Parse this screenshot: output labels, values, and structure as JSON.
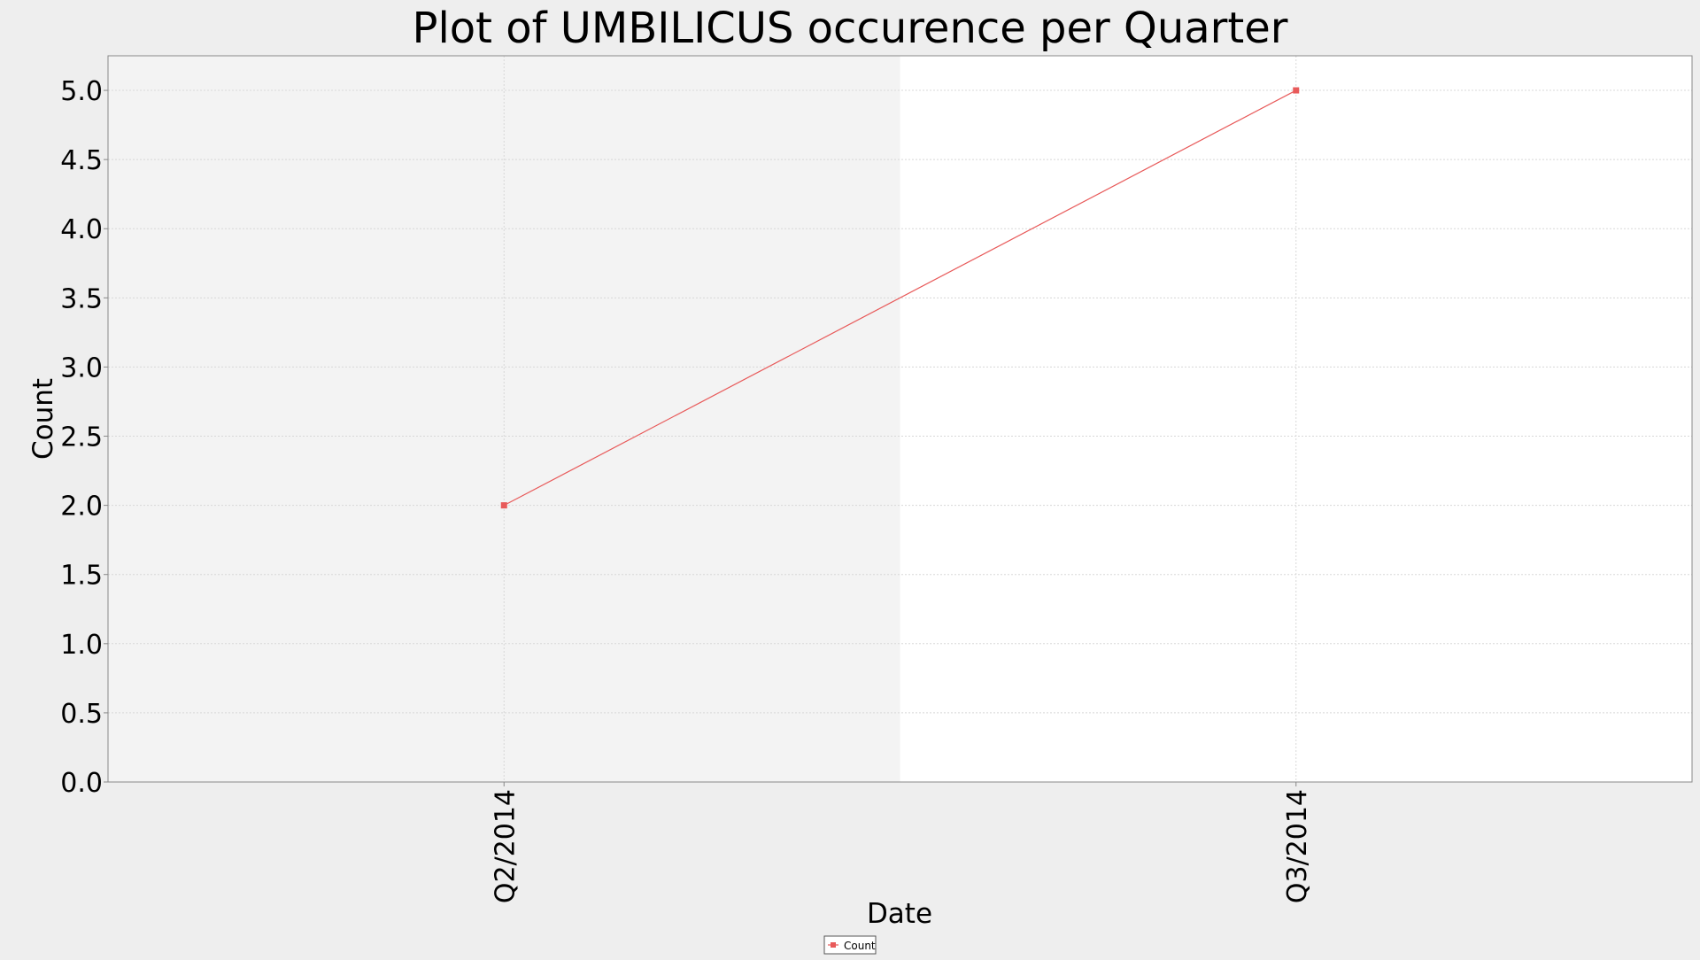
{
  "chart_data": {
    "type": "line",
    "title": "Plot of UMBILICUS occurence per Quarter",
    "xlabel": "Date",
    "ylabel": "Count",
    "categories": [
      "Q2/2014",
      "Q3/2014"
    ],
    "series": [
      {
        "name": "Count",
        "values": [
          2,
          5
        ],
        "color": "#e85a5a"
      }
    ],
    "ylim": [
      0,
      5.25
    ],
    "yticks": [
      "0.0",
      "0.5",
      "1.0",
      "1.5",
      "2.0",
      "2.5",
      "3.0",
      "3.5",
      "4.0",
      "4.5",
      "5.0"
    ],
    "ytick_values": [
      0,
      0.5,
      1.0,
      1.5,
      2.0,
      2.5,
      3.0,
      3.5,
      4.0,
      4.5,
      5.0
    ],
    "grid": true,
    "legend_position": "bottom-center",
    "colors": {
      "page_background": "#eeeeee",
      "band_shaded": "#f3f3f3",
      "band_plain": "#ffffff",
      "gridline": "#d8d8d8",
      "axis": "#888888"
    }
  }
}
